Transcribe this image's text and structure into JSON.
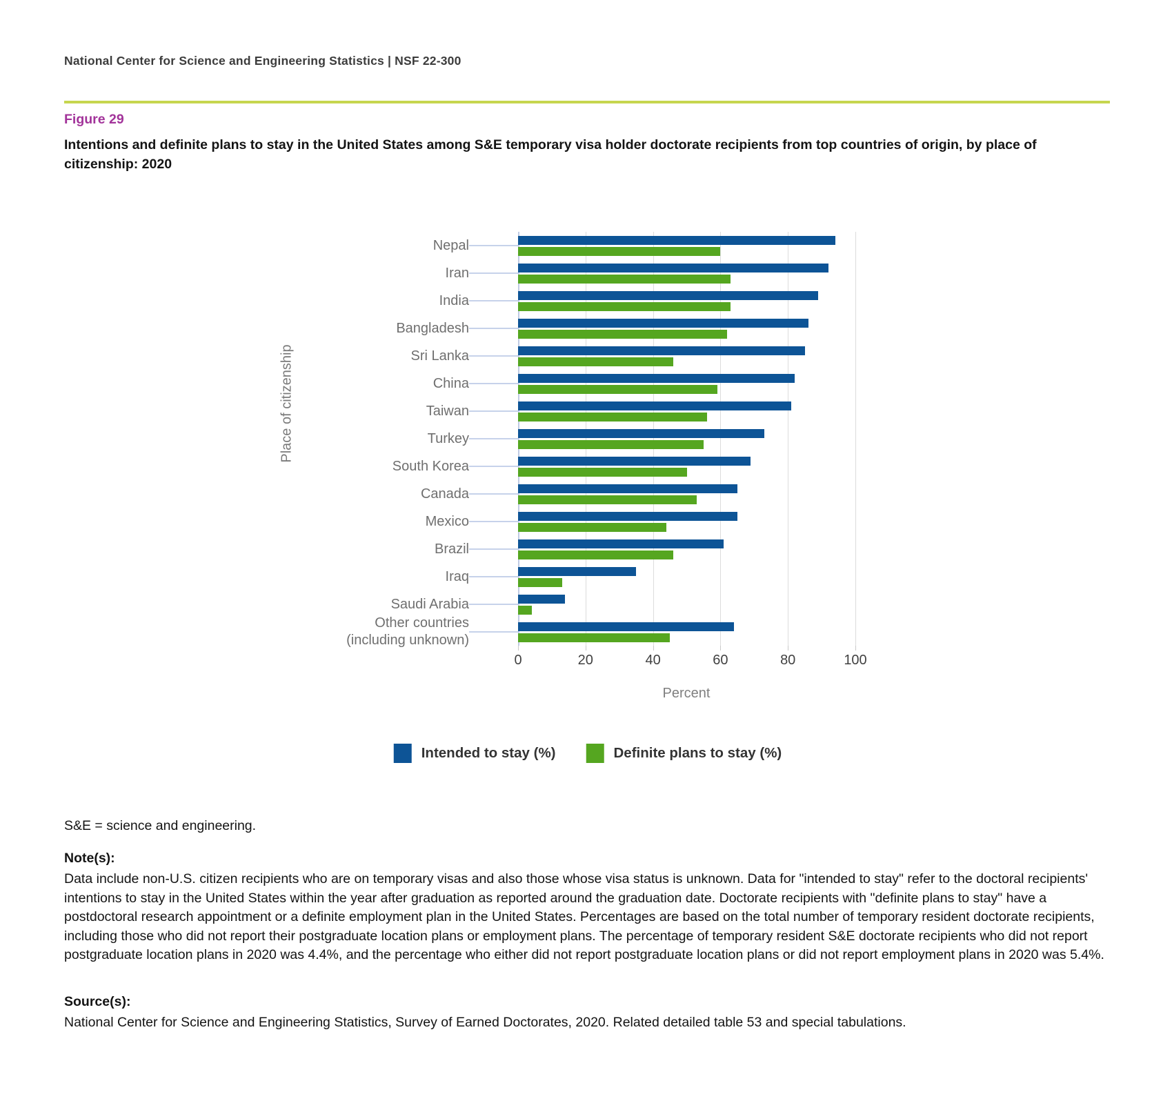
{
  "header": {
    "text": "National Center for Science and Engineering Statistics  |  NSF 22-300"
  },
  "figure": {
    "label": "Figure 29",
    "title": "Intentions and definite plans to stay in the United States among S&E temporary visa holder doctorate recipients from top countries of origin, by place of citizenship: 2020"
  },
  "chart_data": {
    "type": "bar",
    "orientation": "horizontal",
    "ylabel": "Place of citizenship",
    "xlabel": "Percent",
    "xlim": [
      0,
      100
    ],
    "xticks": [
      0,
      20,
      40,
      60,
      80,
      100
    ],
    "grid": true,
    "legend_position": "bottom",
    "categories": [
      "Nepal",
      "Iran",
      "India",
      "Bangladesh",
      "Sri Lanka",
      "China",
      "Taiwan",
      "Turkey",
      "South Korea",
      "Canada",
      "Mexico",
      "Brazil",
      "Iraq",
      "Saudi Arabia",
      "Other countries\n(including unknown)"
    ],
    "series": [
      {
        "name": "Intended to stay (%)",
        "color": "#0d5496",
        "values": [
          94,
          92,
          89,
          86,
          85,
          82,
          81,
          73,
          69,
          65,
          65,
          61,
          35,
          14,
          64
        ]
      },
      {
        "name": "Definite plans to stay (%)",
        "color": "#55a620",
        "values": [
          60,
          63,
          63,
          62,
          46,
          59,
          56,
          55,
          50,
          53,
          44,
          46,
          13,
          4,
          45
        ]
      }
    ]
  },
  "footnotes": {
    "abbreviation": "S&E = science and engineering.",
    "notes_heading": "Note(s):",
    "notes_text": "Data include non-U.S. citizen recipients who are on temporary visas and also those whose visa status is unknown. Data for \"intended to stay\" refer to the doctoral recipients' intentions to stay in the United States within the year after graduation as reported around the graduation date. Doctorate recipients with \"definite plans to stay\" have a postdoctoral research appointment or a definite employment plan in the United States. Percentages are based on the total number of temporary resident doctorate recipients, including those who did not report their postgraduate location plans or employment plans. The percentage of temporary resident S&E doctorate recipients who did not report postgraduate location plans in 2020 was 4.4%, and the percentage who either did not report postgraduate location plans or did not report employment plans in 2020 was 5.4%.",
    "sources_heading": "Source(s):",
    "sources_text": "National Center for Science and Engineering Statistics, Survey of Earned Doctorates, 2020. Related detailed table 53 and special tabulations."
  },
  "colors": {
    "rule": "#c6d64f",
    "figure_label": "#a2339a",
    "intended_bar": "#0d5496",
    "definite_bar": "#55a620",
    "category_label": "#6f6f6f",
    "axis_line": "#bfcbe3",
    "gridline": "#dcdcdc"
  }
}
